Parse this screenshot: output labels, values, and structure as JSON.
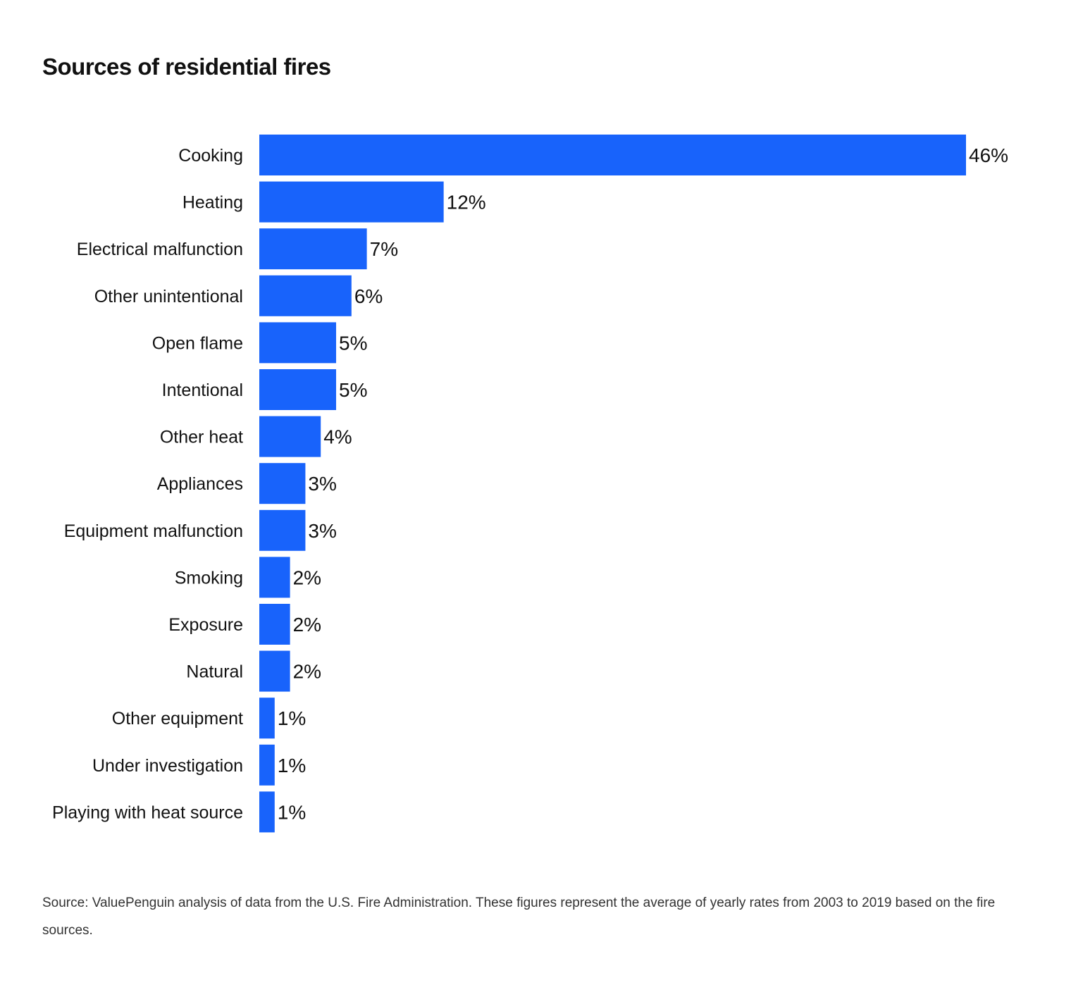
{
  "chart_data": {
    "type": "bar",
    "orientation": "horizontal",
    "title": "Sources of residential fires",
    "categories": [
      "Cooking",
      "Heating",
      "Electrical malfunction",
      "Other unintentional",
      "Open flame",
      "Intentional",
      "Other heat",
      "Appliances",
      "Equipment malfunction",
      "Smoking",
      "Exposure",
      "Natural",
      "Other equipment",
      "Under investigation",
      "Playing with heat source"
    ],
    "values": [
      46,
      12,
      7,
      6,
      5,
      5,
      4,
      3,
      3,
      2,
      2,
      2,
      1,
      1,
      1
    ],
    "value_labels": [
      "46%",
      "12%",
      "7%",
      "6%",
      "5%",
      "5%",
      "4%",
      "3%",
      "3%",
      "2%",
      "2%",
      "2%",
      "1%",
      "1%",
      "1%"
    ],
    "xlim": [
      0,
      46
    ],
    "grid": false,
    "bar_color": "#1863fb",
    "source": "Source: ValuePenguin analysis of data from the U.S. Fire Administration. These figures represent the average of yearly rates from 2003 to 2019 based on the fire sources."
  }
}
